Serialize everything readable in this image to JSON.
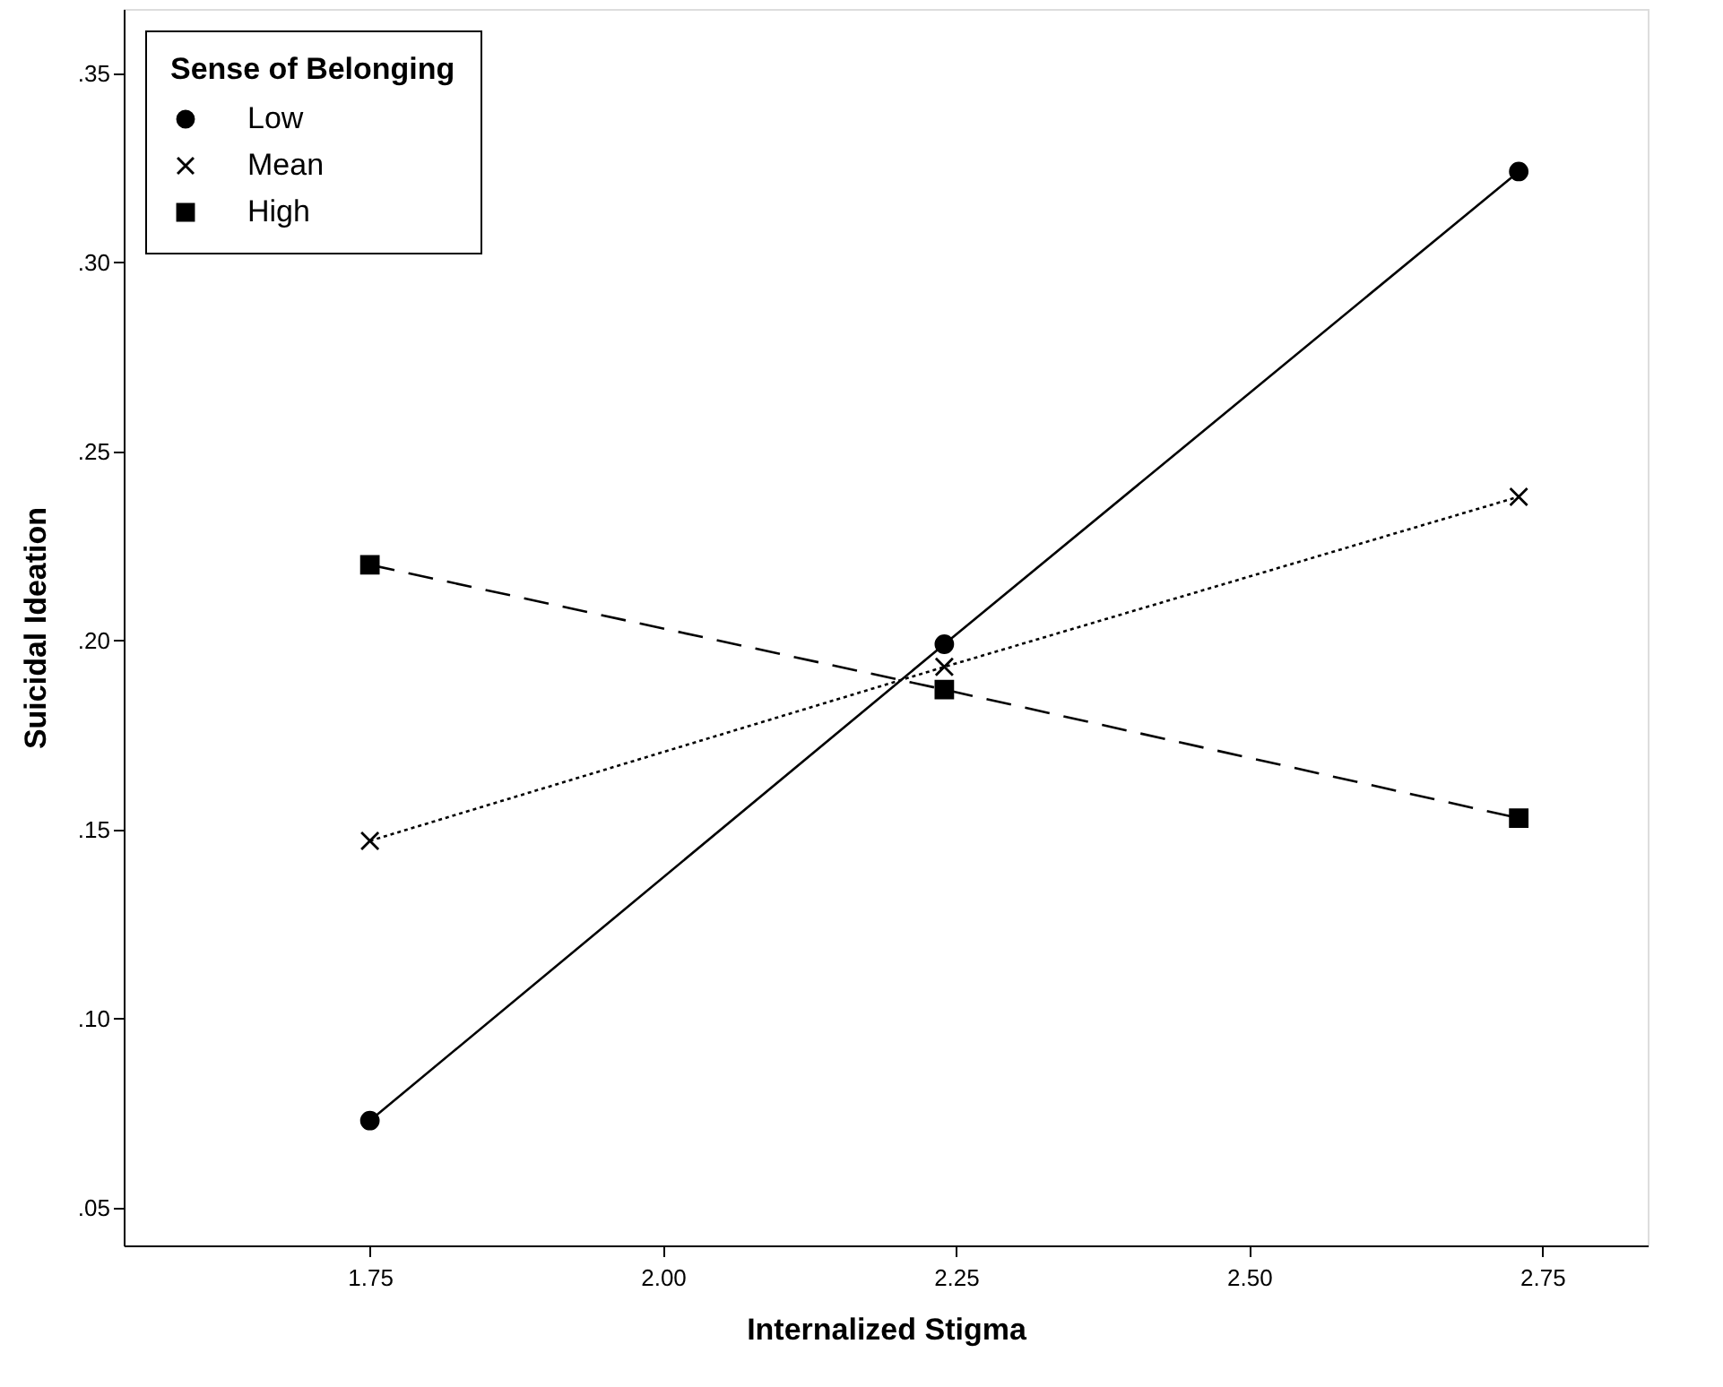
{
  "chart_data": {
    "type": "line",
    "xlabel": "Internalized Stigma",
    "ylabel": "Suicidal Ideation",
    "legend_title": "Sense of Belonging",
    "x": [
      1.75,
      2.24,
      2.73
    ],
    "series": [
      {
        "name": "Low",
        "color": "#000000",
        "values": [
          0.073,
          0.199,
          0.324
        ],
        "marker": "circle",
        "line_style": "solid"
      },
      {
        "name": "Mean",
        "color": "#000000",
        "values": [
          0.147,
          0.193,
          0.238
        ],
        "marker": "cross",
        "line_style": "dotted"
      },
      {
        "name": "High",
        "color": "#000000",
        "values": [
          0.22,
          0.187,
          0.153
        ],
        "marker": "square",
        "line_style": "dashed"
      }
    ],
    "xlim": [
      1.54,
      2.84
    ],
    "ylim": [
      0.04,
      0.367
    ],
    "xticks": [
      1.75,
      {
        "value": 2.0,
        "label": "2.00"
      },
      2.25,
      {
        "value": 2.5,
        "label": "2.50"
      },
      2.75
    ],
    "yticks": [
      {
        "value": 0.05,
        "label": ".05"
      },
      {
        "value": 0.1,
        "label": ".10"
      },
      {
        "value": 0.15,
        "label": ".15"
      },
      {
        "value": 0.2,
        "label": ".20"
      },
      {
        "value": 0.25,
        "label": ".25"
      },
      {
        "value": 0.3,
        "label": ".30"
      },
      {
        "value": 0.35,
        "label": ".35"
      }
    ],
    "grid": false,
    "legend": "top left"
  }
}
